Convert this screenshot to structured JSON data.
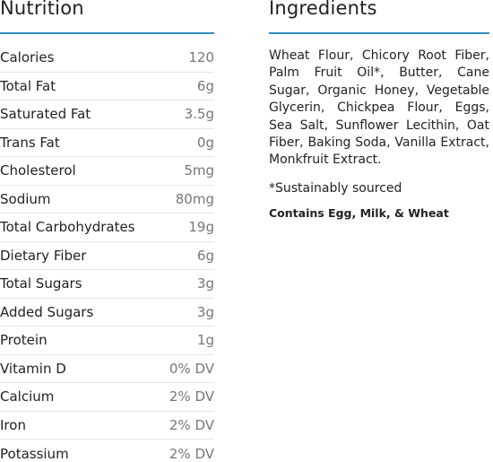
{
  "nutrition": {
    "heading": "Nutrition",
    "rows": [
      {
        "name": "Calories",
        "value": "120"
      },
      {
        "name": "Total Fat",
        "value": "6g"
      },
      {
        "name": "Saturated Fat",
        "value": "3.5g"
      },
      {
        "name": "Trans Fat",
        "value": "0g"
      },
      {
        "name": "Cholesterol",
        "value": "5mg"
      },
      {
        "name": "Sodium",
        "value": "80mg"
      },
      {
        "name": "Total Carbohydrates",
        "value": "19g"
      },
      {
        "name": "Dietary Fiber",
        "value": "6g"
      },
      {
        "name": "Total Sugars",
        "value": "3g"
      },
      {
        "name": "Added Sugars",
        "value": "3g"
      },
      {
        "name": "Protein",
        "value": "1g"
      },
      {
        "name": "Vitamin D",
        "value": "0% DV"
      },
      {
        "name": "Calcium",
        "value": "2% DV"
      },
      {
        "name": "Iron",
        "value": "2% DV"
      },
      {
        "name": "Potassium",
        "value": "2% DV"
      }
    ]
  },
  "ingredients": {
    "heading": "Ingredients",
    "text": "Wheat Flour, Chicory Root Fiber, Palm Fruit Oil*, Butter, Cane Sugar, Organic Honey, Vegetable Glycerin, Chickpea Flour, Eggs, Sea Salt, Sunflower Lecithin, Oat Fiber, Baking Soda, Vanilla Extract, Monkfruit Extract.",
    "sourced_note": "*Sustainably sourced",
    "allergen_note": "Contains Egg, Milk, & Wheat"
  },
  "colors": {
    "accent_line": "#2f8fb8",
    "text": "#222222",
    "value_text": "#777777",
    "row_divider": "#e4e4e4"
  }
}
